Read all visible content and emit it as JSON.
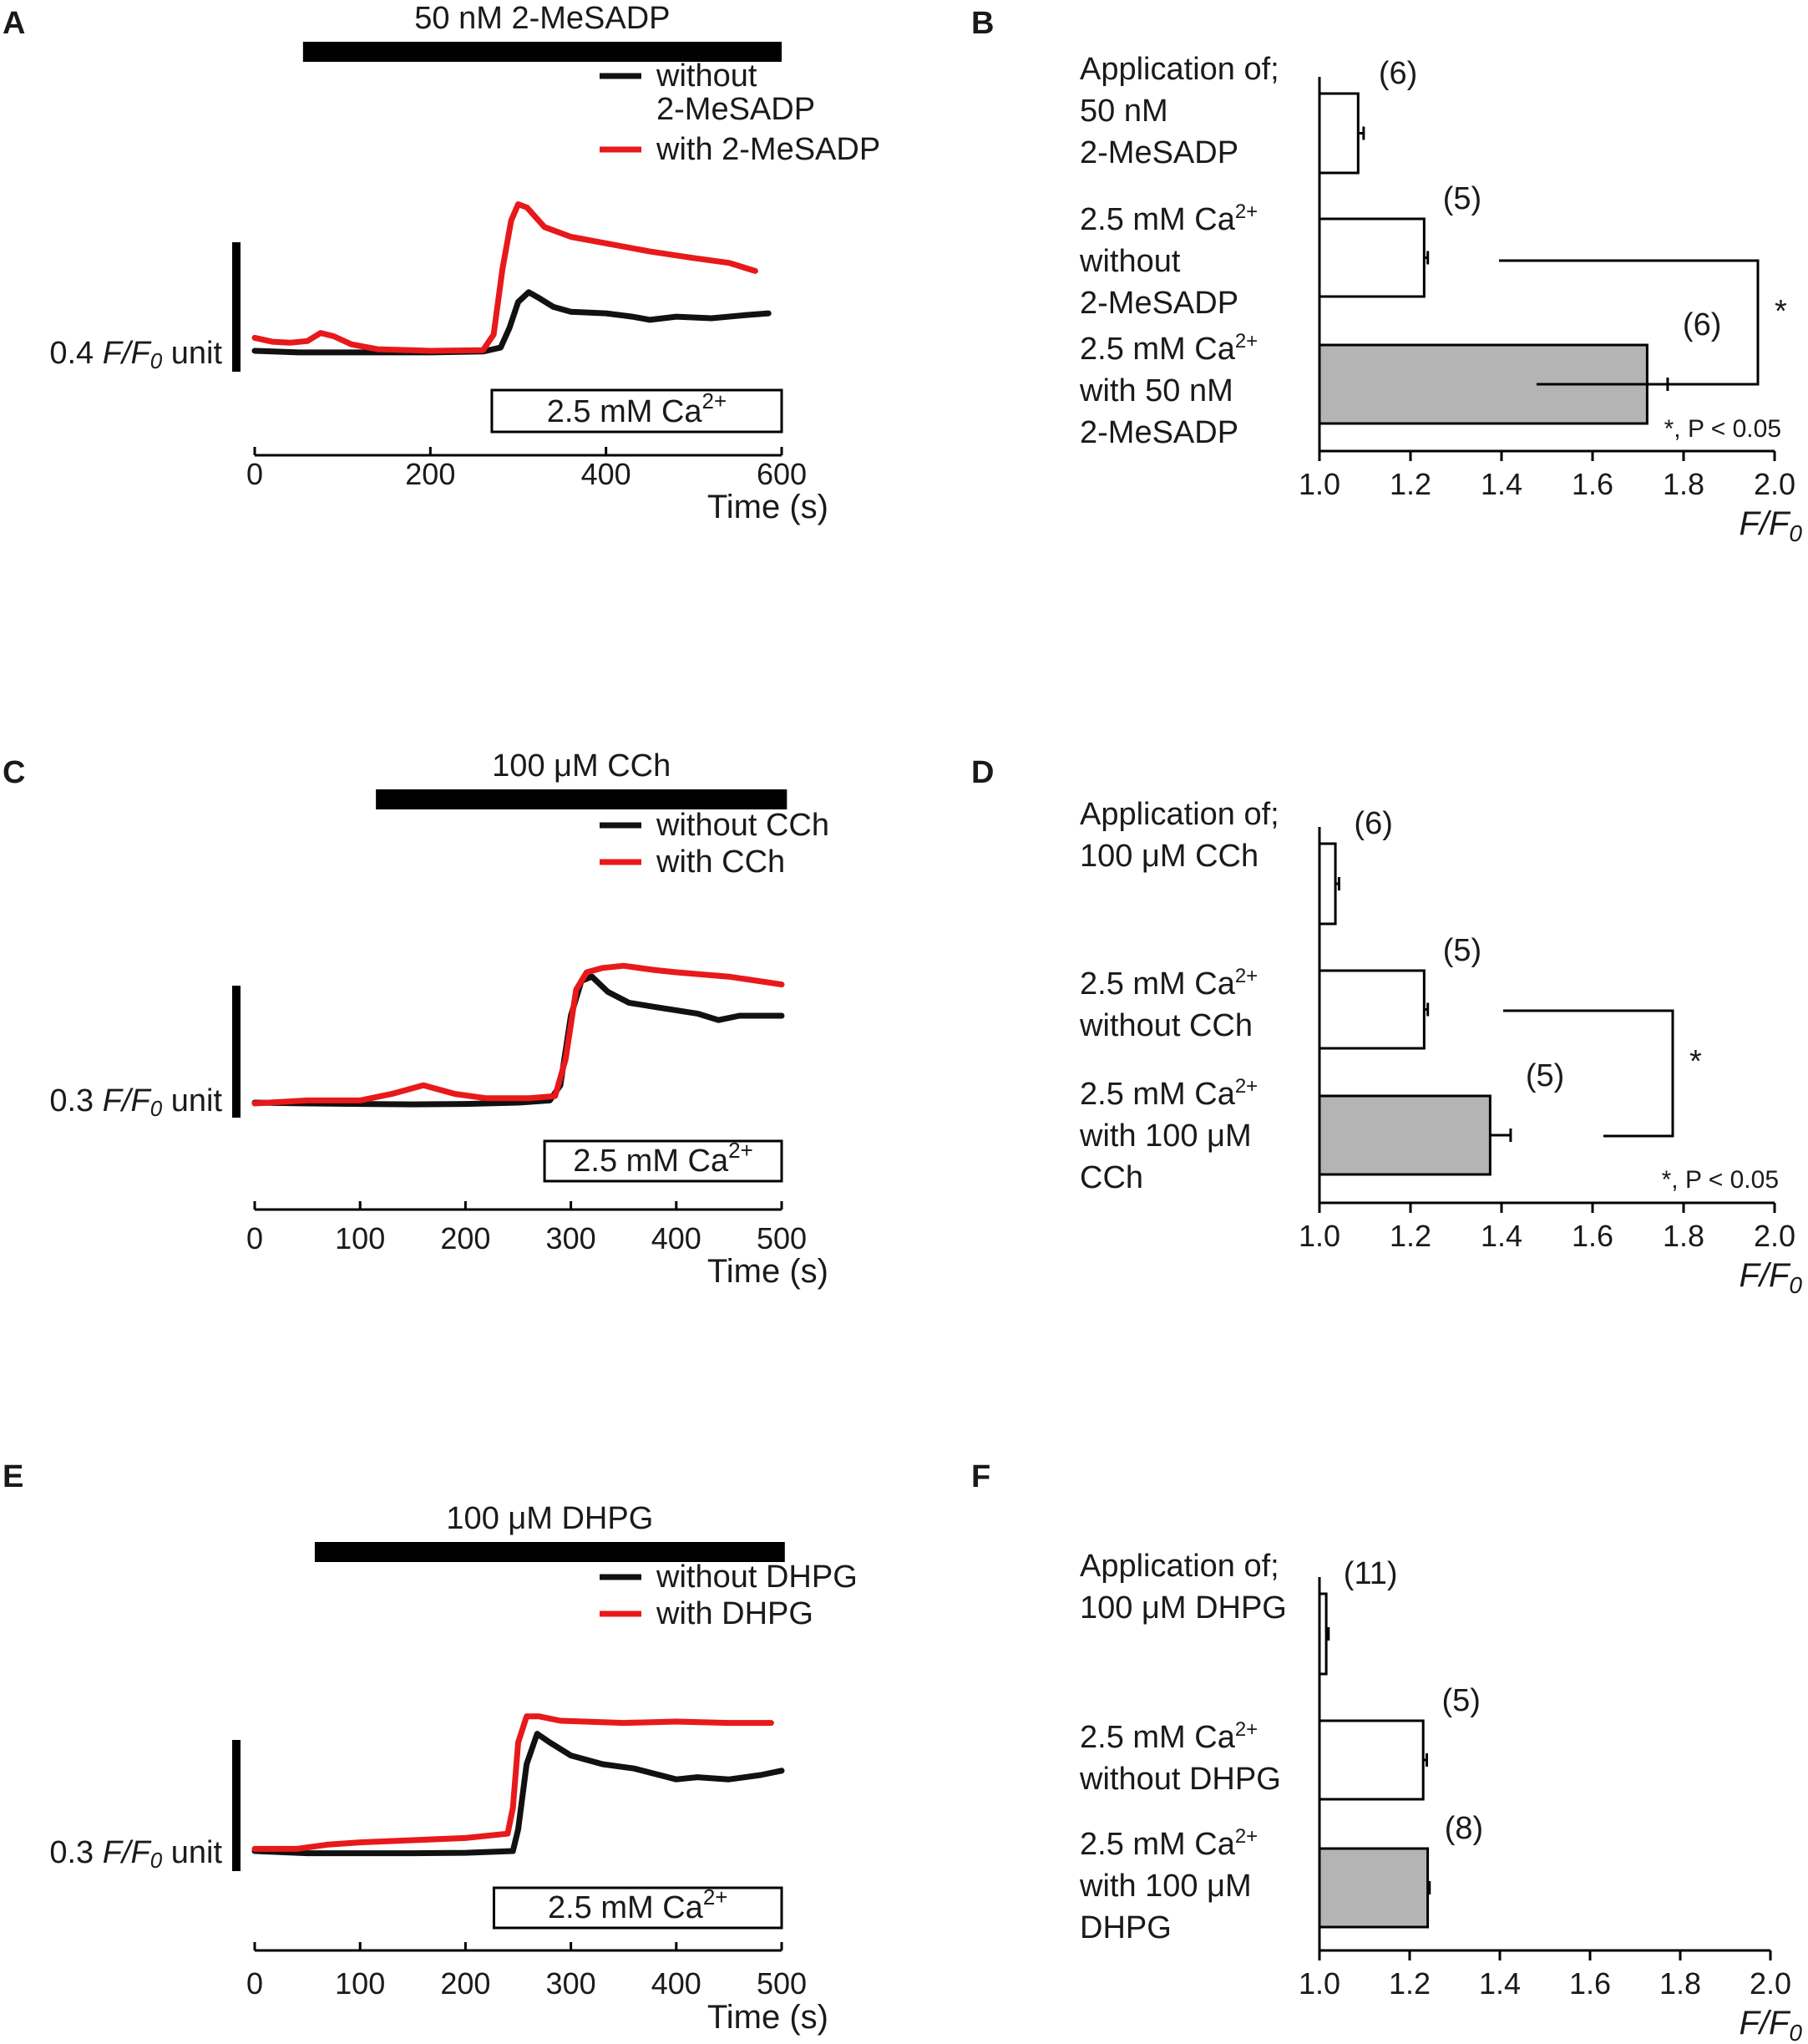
{
  "colors": {
    "black_trace": "#111111",
    "red_trace": "#e8191b",
    "bar_fill": "#b4b4b4",
    "outline": "#000000"
  },
  "panels": [
    {
      "letter": "A",
      "chart_data": {
        "type": "line",
        "title": "50 nM 2-MeSADP",
        "xlabel": "Time (s)",
        "xlim": [
          0,
          600
        ],
        "xticks": [
          0,
          200,
          400,
          600
        ],
        "xtick_labels": [
          "0",
          "200",
          "400",
          "600"
        ],
        "scalebar": {
          "value": 0.4,
          "label": "0.4 F/F0 unit",
          "prefix": "0.4 ",
          "italic": "F/F",
          "sub": "0",
          "suffix": " unit"
        },
        "application": {
          "label": "50 nM 2-MeSADP",
          "start": 55,
          "end": 600
        },
        "calcium": {
          "label": "2.5 mM Ca",
          "sup": "2+",
          "start": 270,
          "end": 600
        },
        "legend": [
          {
            "lines": [
              "without",
              "2-MeSADP"
            ],
            "color": "#111111"
          },
          {
            "lines": [
              "with 2-MeSADP"
            ],
            "color": "#e8191b"
          }
        ],
        "series": [
          {
            "name": "without 2-MeSADP",
            "color": "#111111",
            "points": [
              [
                0,
                1.0
              ],
              [
                50,
                0.995
              ],
              [
                100,
                0.995
              ],
              [
                200,
                0.995
              ],
              [
                260,
                0.998
              ],
              [
                280,
                1.01
              ],
              [
                290,
                1.07
              ],
              [
                300,
                1.15
              ],
              [
                312,
                1.18
              ],
              [
                325,
                1.16
              ],
              [
                340,
                1.135
              ],
              [
                360,
                1.12
              ],
              [
                400,
                1.115
              ],
              [
                430,
                1.105
              ],
              [
                450,
                1.095
              ],
              [
                480,
                1.105
              ],
              [
                520,
                1.1
              ],
              [
                560,
                1.11
              ],
              [
                585,
                1.115
              ]
            ]
          },
          {
            "name": "with 2-MeSADP",
            "color": "#e8191b",
            "points": [
              [
                0,
                1.04
              ],
              [
                20,
                1.028
              ],
              [
                40,
                1.025
              ],
              [
                60,
                1.03
              ],
              [
                75,
                1.055
              ],
              [
                90,
                1.045
              ],
              [
                110,
                1.02
              ],
              [
                140,
                1.005
              ],
              [
                200,
                1.0
              ],
              [
                260,
                1.002
              ],
              [
                272,
                1.05
              ],
              [
                282,
                1.25
              ],
              [
                292,
                1.4
              ],
              [
                300,
                1.45
              ],
              [
                310,
                1.44
              ],
              [
                330,
                1.38
              ],
              [
                360,
                1.35
              ],
              [
                400,
                1.33
              ],
              [
                450,
                1.305
              ],
              [
                500,
                1.285
              ],
              [
                540,
                1.27
              ],
              [
                570,
                1.245
              ]
            ]
          }
        ]
      }
    },
    {
      "letter": "B",
      "chart_data": {
        "type": "bar",
        "orientation": "horizontal",
        "xlabel_italic": "F/F",
        "xlabel_sub": "0",
        "xlim": [
          1.0,
          2.0
        ],
        "xticks": [
          "1.0",
          "1.2",
          "1.4",
          "1.6",
          "1.8",
          "2.0"
        ],
        "categories": [
          {
            "lines": [
              "Application of;",
              "50 nM",
              "2-MeSADP"
            ],
            "value": 1.085,
            "err": 0.012,
            "n": "(6)",
            "fill": "white"
          },
          {
            "lines": [
              "2.5 mM Ca2+",
              "without",
              "2-MeSADP"
            ],
            "value": 1.23,
            "err": 0.008,
            "n": "(5)",
            "fill": "white"
          },
          {
            "lines": [
              "2.5 mM Ca2+",
              "with 50 nM",
              "2-MeSADP"
            ],
            "value": 1.72,
            "err": 0.045,
            "n": "(6)",
            "fill": "gray"
          }
        ],
        "significance": {
          "star": "*",
          "note": "*, P < 0.05"
        }
      }
    },
    {
      "letter": "C",
      "chart_data": {
        "type": "line",
        "title": "100 μM CCh",
        "xlabel": "Time (s)",
        "xlim": [
          0,
          500
        ],
        "xticks": [
          0,
          100,
          200,
          300,
          400,
          500
        ],
        "xtick_labels": [
          "0",
          "100",
          "200",
          "300",
          "400",
          "500"
        ],
        "scalebar": {
          "value": 0.3,
          "label": "0.3 F/F0 unit",
          "prefix": "0.3 ",
          "italic": "F/F",
          "sub": "0",
          "suffix": " unit"
        },
        "application": {
          "label": "100 μM CCh",
          "start": 115,
          "end": 505
        },
        "calcium": {
          "label": "2.5 mM Ca",
          "sup": "2+",
          "start": 275,
          "end": 500
        },
        "legend": [
          {
            "lines": [
              "without CCh"
            ],
            "color": "#111111"
          },
          {
            "lines": [
              "with CCh"
            ],
            "color": "#e8191b"
          }
        ],
        "series": [
          {
            "name": "without CCh",
            "color": "#111111",
            "points": [
              [
                0,
                1.0
              ],
              [
                50,
                0.998
              ],
              [
                100,
                0.997
              ],
              [
                150,
                0.996
              ],
              [
                200,
                0.997
              ],
              [
                250,
                1.0
              ],
              [
                280,
                1.005
              ],
              [
                290,
                1.04
              ],
              [
                300,
                1.2
              ],
              [
                310,
                1.28
              ],
              [
                320,
                1.29
              ],
              [
                335,
                1.255
              ],
              [
                355,
                1.23
              ],
              [
                380,
                1.22
              ],
              [
                420,
                1.205
              ],
              [
                440,
                1.19
              ],
              [
                460,
                1.2
              ],
              [
                500,
                1.2
              ]
            ]
          },
          {
            "name": "with CCh",
            "color": "#e8191b",
            "points": [
              [
                0,
                0.998
              ],
              [
                50,
                1.005
              ],
              [
                100,
                1.005
              ],
              [
                130,
                1.02
              ],
              [
                160,
                1.04
              ],
              [
                190,
                1.02
              ],
              [
                220,
                1.01
              ],
              [
                260,
                1.01
              ],
              [
                285,
                1.015
              ],
              [
                295,
                1.1
              ],
              [
                305,
                1.26
              ],
              [
                315,
                1.3
              ],
              [
                330,
                1.31
              ],
              [
                350,
                1.315
              ],
              [
                380,
                1.305
              ],
              [
                400,
                1.3
              ],
              [
                450,
                1.29
              ],
              [
                500,
                1.272
              ]
            ]
          }
        ]
      }
    },
    {
      "letter": "D",
      "chart_data": {
        "type": "bar",
        "orientation": "horizontal",
        "xlabel_italic": "F/F",
        "xlabel_sub": "0",
        "xlim": [
          1.0,
          2.0
        ],
        "xticks": [
          "1.0",
          "1.2",
          "1.4",
          "1.6",
          "1.8",
          "2.0"
        ],
        "categories": [
          {
            "lines": [
              "Application of;",
              "100 μM CCh"
            ],
            "value": 1.035,
            "err": 0.008,
            "n": "(6)",
            "fill": "white"
          },
          {
            "lines": [
              "2.5 mM Ca2+",
              "without CCh"
            ],
            "value": 1.23,
            "err": 0.008,
            "n": "(5)",
            "fill": "white"
          },
          {
            "lines": [
              "2.5 mM Ca2+",
              "with 100 μM",
              "CCh"
            ],
            "value": 1.375,
            "err": 0.045,
            "n": "(5)",
            "fill": "gray"
          }
        ],
        "significance": {
          "star": "*",
          "note": "*, P < 0.05"
        }
      }
    },
    {
      "letter": "E",
      "chart_data": {
        "type": "line",
        "title": "100 μM DHPG",
        "xlabel": "Time (s)",
        "xlim": [
          0,
          500
        ],
        "xticks": [
          0,
          100,
          200,
          300,
          400,
          500
        ],
        "xtick_labels": [
          "0",
          "100",
          "200",
          "300",
          "400",
          "500"
        ],
        "scalebar": {
          "value": 0.3,
          "label": "0.3 F/F0 unit",
          "prefix": "0.3 ",
          "italic": "F/F",
          "sub": "0",
          "suffix": " unit"
        },
        "application": {
          "label": "100 μM DHPG",
          "start": 57,
          "end": 503
        },
        "calcium": {
          "label": "2.5 mM Ca",
          "sup": "2+",
          "start": 227,
          "end": 500
        },
        "legend": [
          {
            "lines": [
              "without DHPG"
            ],
            "color": "#111111"
          },
          {
            "lines": [
              "with DHPG"
            ],
            "color": "#e8191b"
          }
        ],
        "series": [
          {
            "name": "without DHPG",
            "color": "#111111",
            "points": [
              [
                0,
                1.0
              ],
              [
                50,
                0.995
              ],
              [
                100,
                0.995
              ],
              [
                150,
                0.995
              ],
              [
                200,
                0.996
              ],
              [
                245,
                1.0
              ],
              [
                250,
                1.05
              ],
              [
                258,
                1.2
              ],
              [
                268,
                1.27
              ],
              [
                280,
                1.25
              ],
              [
                300,
                1.22
              ],
              [
                330,
                1.2
              ],
              [
                360,
                1.19
              ],
              [
                400,
                1.165
              ],
              [
                420,
                1.17
              ],
              [
                450,
                1.165
              ],
              [
                480,
                1.175
              ],
              [
                500,
                1.185
              ]
            ]
          },
          {
            "name": "with DHPG",
            "color": "#e8191b",
            "points": [
              [
                0,
                1.005
              ],
              [
                40,
                1.005
              ],
              [
                70,
                1.015
              ],
              [
                100,
                1.02
              ],
              [
                150,
                1.025
              ],
              [
                200,
                1.03
              ],
              [
                240,
                1.04
              ],
              [
                245,
                1.1
              ],
              [
                250,
                1.25
              ],
              [
                258,
                1.31
              ],
              [
                270,
                1.31
              ],
              [
                290,
                1.3
              ],
              [
                350,
                1.295
              ],
              [
                400,
                1.298
              ],
              [
                450,
                1.295
              ],
              [
                490,
                1.295
              ]
            ]
          }
        ]
      }
    },
    {
      "letter": "F",
      "chart_data": {
        "type": "bar",
        "orientation": "horizontal",
        "xlabel_italic": "F/F",
        "xlabel_sub": "0",
        "xlim": [
          1.0,
          2.0
        ],
        "xticks": [
          "1.0",
          "1.2",
          "1.4",
          "1.6",
          "1.8",
          "2.0"
        ],
        "categories": [
          {
            "lines": [
              "Application of;",
              "100 μM DHPG"
            ],
            "value": 1.015,
            "err": 0.005,
            "n": "(11)",
            "fill": "white"
          },
          {
            "lines": [
              "2.5 mM Ca2+",
              "without DHPG"
            ],
            "value": 1.23,
            "err": 0.008,
            "n": "(5)",
            "fill": "white"
          },
          {
            "lines": [
              "2.5 mM Ca2+",
              "with 100 μM",
              "DHPG"
            ],
            "value": 1.24,
            "err": 0.004,
            "n": "(8)",
            "fill": "gray"
          }
        ],
        "significance": null
      }
    }
  ]
}
